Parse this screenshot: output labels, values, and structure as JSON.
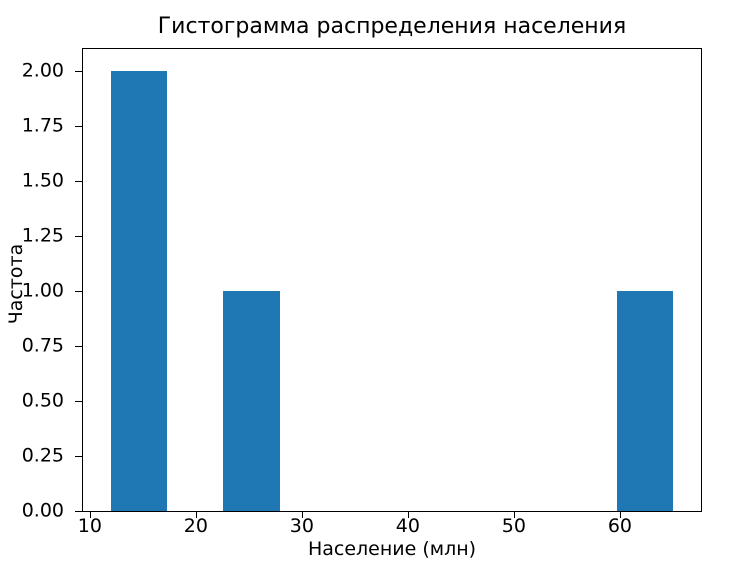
{
  "chart_data": {
    "type": "bar",
    "subtype": "histogram",
    "title": "Гистограмма распределения населения",
    "xlabel": "Население (млн)",
    "ylabel": "Частота",
    "bin_edges": [
      12.0,
      17.3,
      22.6,
      27.9,
      33.2,
      38.5,
      43.8,
      49.1,
      54.4,
      59.7,
      65.0
    ],
    "counts": [
      2,
      0,
      1,
      0,
      0,
      0,
      0,
      0,
      0,
      1
    ],
    "xlim": [
      9.35,
      67.65
    ],
    "ylim": [
      0,
      2.1
    ],
    "xticks": [
      10,
      20,
      30,
      40,
      50,
      60
    ],
    "yticks": [
      0,
      0.25,
      0.5,
      0.75,
      1.0,
      1.25,
      1.5,
      1.75,
      2.0
    ],
    "ytick_labels": [
      "0.00",
      "0.25",
      "0.50",
      "0.75",
      "1.00",
      "1.25",
      "1.50",
      "1.75",
      "2.00"
    ],
    "bar_color": "#1f77b4",
    "axis_color": "#000000",
    "background_color": "#ffffff",
    "grid": false,
    "legend_position": "none"
  }
}
